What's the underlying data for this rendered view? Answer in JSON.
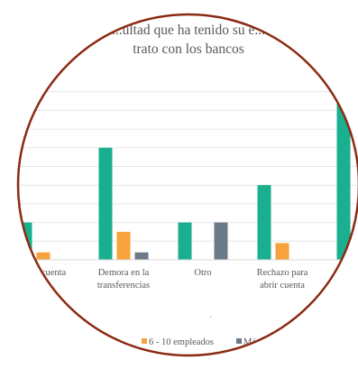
{
  "chart_data": {
    "type": "bar",
    "title_lines": [
      "...ultad que ha tenido su e...",
      "trato con los bancos"
    ],
    "categories": [
      {
        "lines": [
          "... de cuenta"
        ]
      },
      {
        "lines": [
          "Demora en la",
          "transferencias"
        ]
      },
      {
        "lines": [
          "Otro"
        ]
      },
      {
        "lines": [
          "Rechazo para",
          "abrir cuenta"
        ]
      },
      {
        "lines": [
          ""
        ]
      }
    ],
    "series": [
      {
        "name": "",
        "color": "#1aaf8e",
        "values": [
          2,
          6,
          2,
          4,
          8.8
        ]
      },
      {
        "name": "6 - 10 empleados",
        "color": "#f7a23c",
        "values": [
          0.4,
          1.5,
          null,
          0.9,
          null
        ]
      },
      {
        "name": "Más...",
        "color": "#6b7a86",
        "values": [
          null,
          0.4,
          2,
          null,
          null
        ]
      }
    ],
    "legend_position": "bottom",
    "grid": true,
    "ylim": [
      0,
      9
    ]
  }
}
